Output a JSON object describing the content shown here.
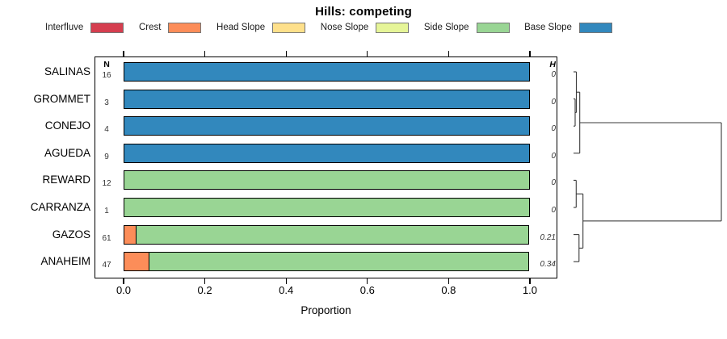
{
  "title": "Hills: competing",
  "legend": {
    "items": [
      {
        "label": "Interfluve",
        "color": "#D53E4F"
      },
      {
        "label": "Crest",
        "color": "#FC8D59"
      },
      {
        "label": "Head Slope",
        "color": "#FEE08B"
      },
      {
        "label": "Nose Slope",
        "color": "#E6F598"
      },
      {
        "label": "Side Slope",
        "color": "#99D594"
      },
      {
        "label": "Base Slope",
        "color": "#3288BD"
      }
    ]
  },
  "chart_data": {
    "type": "bar",
    "orientation": "horizontal",
    "stacked": true,
    "title": "Hills: competing",
    "xlabel": "Proportion",
    "xlim": [
      0,
      1
    ],
    "xticks": [
      "0.0",
      "0.2",
      "0.4",
      "0.6",
      "0.8",
      "1.0"
    ],
    "grid": false,
    "legend_position": "top",
    "categories": [
      "Interfluve",
      "Crest",
      "Head Slope",
      "Nose Slope",
      "Side Slope",
      "Base Slope"
    ],
    "colors": {
      "Interfluve": "#D53E4F",
      "Crest": "#FC8D59",
      "Head Slope": "#FEE08B",
      "Nose Slope": "#E6F598",
      "Side Slope": "#99D594",
      "Base Slope": "#3288BD"
    },
    "columns": {
      "n_header": "N",
      "h_header": "H"
    },
    "rows": [
      {
        "label": "SALINAS",
        "n": "16",
        "h": "0",
        "segments": [
          {
            "category": "Base Slope",
            "value": 1.0
          }
        ]
      },
      {
        "label": "GROMMET",
        "n": "3",
        "h": "0",
        "segments": [
          {
            "category": "Base Slope",
            "value": 1.0
          }
        ]
      },
      {
        "label": "CONEJO",
        "n": "4",
        "h": "0",
        "segments": [
          {
            "category": "Base Slope",
            "value": 1.0
          }
        ]
      },
      {
        "label": "AGUEDA",
        "n": "9",
        "h": "0",
        "segments": [
          {
            "category": "Base Slope",
            "value": 1.0
          }
        ]
      },
      {
        "label": "REWARD",
        "n": "12",
        "h": "0",
        "segments": [
          {
            "category": "Side Slope",
            "value": 1.0
          }
        ]
      },
      {
        "label": "CARRANZA",
        "n": "1",
        "h": "0",
        "segments": [
          {
            "category": "Side Slope",
            "value": 1.0
          }
        ]
      },
      {
        "label": "GAZOS",
        "n": "61",
        "h": "0.21",
        "segments": [
          {
            "category": "Crest",
            "value": 0.033
          },
          {
            "category": "Side Slope",
            "value": 0.967
          }
        ]
      },
      {
        "label": "ANAHEIM",
        "n": "47",
        "h": "0.34",
        "segments": [
          {
            "category": "Crest",
            "value": 0.064
          },
          {
            "category": "Side Slope",
            "value": 0.936
          }
        ]
      }
    ],
    "dendrogram": {
      "leaf_order": [
        "SALINAS",
        "GROMMET",
        "CONEJO",
        "AGUEDA",
        "REWARD",
        "CARRANZA",
        "GAZOS",
        "ANAHEIM"
      ],
      "merges": [
        {
          "id": "m0",
          "a": "GROMMET",
          "b": "CONEJO",
          "h": 0.011
        },
        {
          "id": "m1",
          "a": "SALINAS",
          "b": "m0",
          "h": 0.019
        },
        {
          "id": "m2",
          "a": "m1",
          "b": "AGUEDA",
          "h": 0.042
        },
        {
          "id": "m3",
          "a": "REWARD",
          "b": "CARRANZA",
          "h": 0.018
        },
        {
          "id": "m4",
          "a": "GAZOS",
          "b": "ANAHEIM",
          "h": 0.037
        },
        {
          "id": "m5",
          "a": "m3",
          "b": "m4",
          "h": 0.064
        },
        {
          "id": "m6",
          "a": "m2",
          "b": "m5",
          "h": 1.0
        }
      ]
    }
  }
}
